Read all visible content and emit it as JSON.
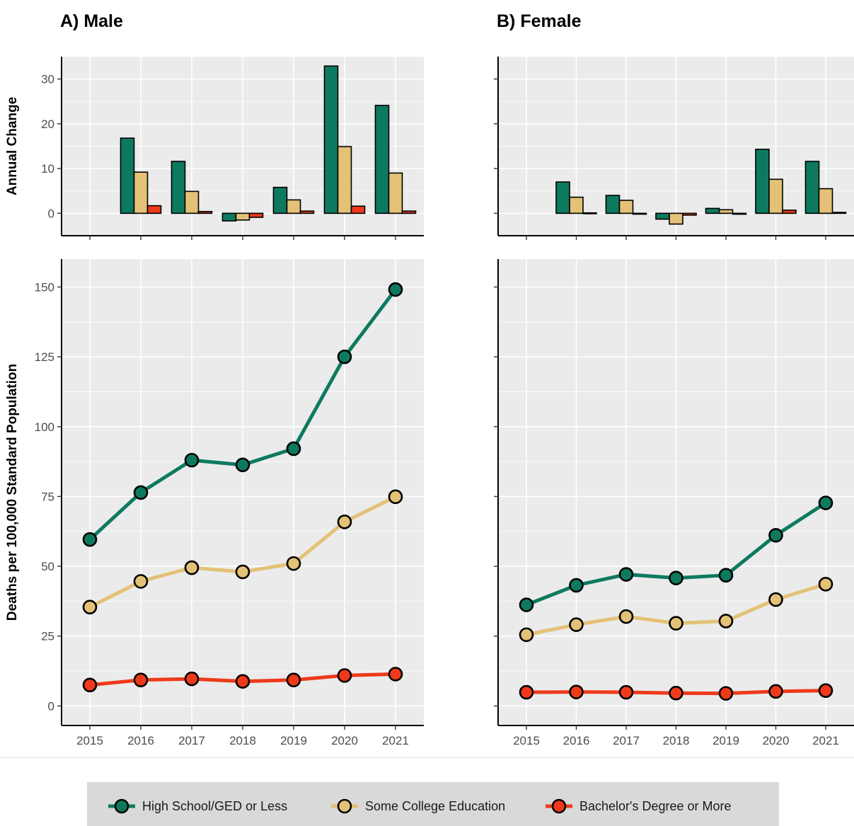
{
  "chart_data": {
    "type": "line",
    "x": [
      2015,
      2016,
      2017,
      2018,
      2019,
      2020,
      2021
    ],
    "colors": {
      "series": [
        "#0d7a5f",
        "#e3c176",
        "#ee3a1a"
      ],
      "panel_background": "#ebebeb",
      "legend_background": "#d9d9d9"
    },
    "panels": [
      {
        "title": "A) Male",
        "annual_change": {
          "type": "bar",
          "ylabel": "Annual Change",
          "ylim": [
            -5,
            35
          ],
          "yticks": [
            0,
            10,
            20,
            30
          ],
          "x": [
            2016,
            2017,
            2018,
            2019,
            2020,
            2021
          ],
          "series": [
            {
              "values": [
                16.8,
                11.6,
                -1.7,
                5.8,
                32.9,
                24.1
              ]
            },
            {
              "values": [
                9.2,
                4.9,
                -1.5,
                3.0,
                14.9,
                9.0
              ]
            },
            {
              "values": [
                1.7,
                0.4,
                -0.9,
                0.5,
                1.6,
                0.5
              ]
            }
          ]
        },
        "deaths": {
          "type": "line",
          "ylabel": "Deaths per 100,000 Standard Population",
          "ylim": [
            -7,
            160
          ],
          "yticks": [
            0,
            25,
            50,
            75,
            100,
            125,
            150
          ],
          "series": [
            {
              "values": [
                59.6,
                76.4,
                88.0,
                86.3,
                92.1,
                125.0,
                149.1
              ]
            },
            {
              "values": [
                35.4,
                44.6,
                49.5,
                48.0,
                51.0,
                65.9,
                74.9
              ]
            },
            {
              "values": [
                7.5,
                9.3,
                9.7,
                8.8,
                9.3,
                10.9,
                11.4
              ]
            }
          ]
        }
      },
      {
        "title": "B) Female",
        "annual_change": {
          "type": "bar",
          "ylim": [
            -5,
            35
          ],
          "yticks": [
            0,
            10,
            20,
            30
          ],
          "x": [
            2016,
            2017,
            2018,
            2019,
            2020,
            2021
          ],
          "series": [
            {
              "values": [
                7.0,
                4.0,
                -1.3,
                1.1,
                14.3,
                11.6
              ]
            },
            {
              "values": [
                3.6,
                2.9,
                -2.4,
                0.8,
                7.6,
                5.5
              ]
            },
            {
              "values": [
                0.1,
                -0.1,
                -0.4,
                -0.2,
                0.7,
                0.2
              ]
            }
          ]
        },
        "deaths": {
          "type": "line",
          "ylim": [
            -7,
            160
          ],
          "yticks": [
            0,
            25,
            50,
            75,
            100,
            125,
            150
          ],
          "series": [
            {
              "values": [
                36.2,
                43.2,
                47.1,
                45.8,
                46.8,
                61.1,
                72.7
              ]
            },
            {
              "values": [
                25.5,
                29.1,
                32.0,
                29.6,
                30.4,
                38.1,
                43.6
              ]
            },
            {
              "values": [
                4.9,
                5.0,
                4.9,
                4.6,
                4.5,
                5.2,
                5.5
              ]
            }
          ]
        }
      }
    ],
    "legend": {
      "position": "bottom",
      "entries": [
        "High School/GED or Less",
        "Some College Education",
        "Bachelor's Degree or More"
      ]
    }
  }
}
